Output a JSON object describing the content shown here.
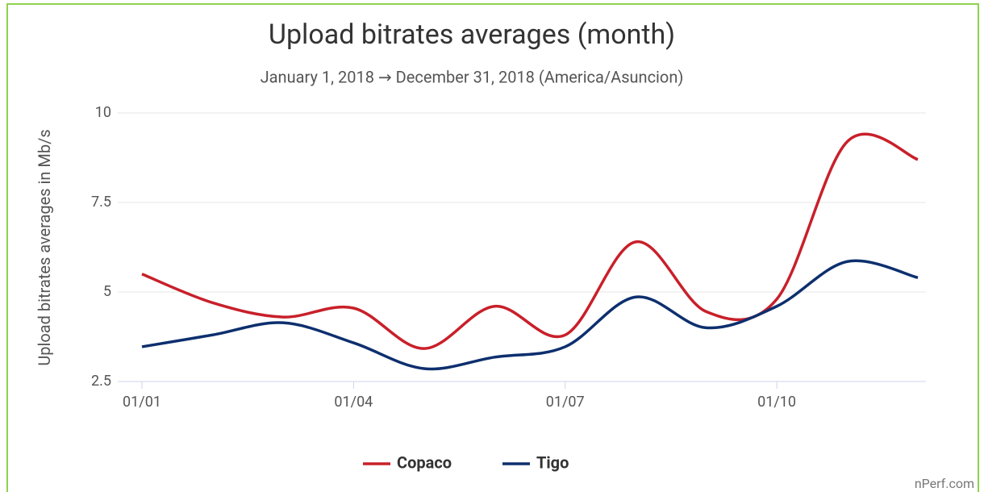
{
  "chart_data": {
    "type": "line",
    "title": "Upload bitrates averages (month)",
    "subtitle": "January 1, 2018 → December 31, 2018 (America/Asuncion)",
    "y_label": "Upload bitrates averages in Mb/s",
    "credits": "nPerf.com",
    "categories": [
      "01/01",
      null,
      null,
      "01/04",
      null,
      null,
      "01/07",
      null,
      null,
      "01/10",
      null,
      null
    ],
    "series": [
      {
        "name": "Copaco",
        "color": "#c8202a",
        "values": [
          5.5,
          4.7,
          4.3,
          4.55,
          3.42,
          4.6,
          3.8,
          6.4,
          4.45,
          4.8,
          9.2,
          8.7
        ]
      },
      {
        "name": "Tigo",
        "color": "#0d2f6e",
        "values": [
          3.47,
          3.8,
          4.14,
          3.58,
          2.86,
          3.18,
          3.47,
          4.86,
          4.0,
          4.6,
          5.85,
          5.4
        ]
      }
    ],
    "ylim": [
      2.5,
      10
    ],
    "yticks": [
      2.5,
      5,
      7.5,
      10
    ],
    "grid": true,
    "legend": "bottom"
  }
}
